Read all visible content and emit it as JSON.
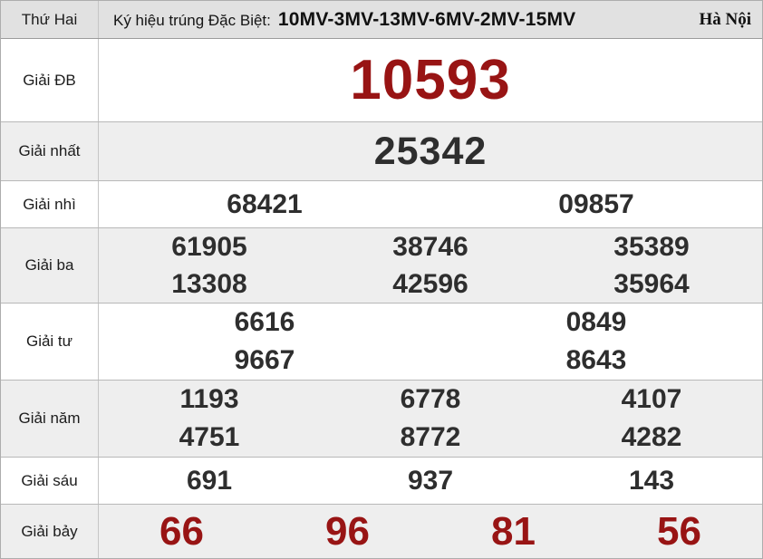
{
  "header": {
    "day": "Thứ Hai",
    "sign_label": "Ký hiệu trúng Đặc Biệt:",
    "sign_codes": "10MV-3MV-13MV-6MV-2MV-15MV",
    "region": "Hà Nội"
  },
  "prizes": [
    {
      "label": "Giải ĐB",
      "numbers": [
        [
          "10593"
        ]
      ]
    },
    {
      "label": "Giải nhất",
      "numbers": [
        [
          "25342"
        ]
      ]
    },
    {
      "label": "Giải nhì",
      "numbers": [
        [
          "68421",
          "09857"
        ]
      ]
    },
    {
      "label": "Giải ba",
      "numbers": [
        [
          "61905",
          "38746",
          "35389"
        ],
        [
          "13308",
          "42596",
          "35964"
        ]
      ]
    },
    {
      "label": "Giải tư",
      "numbers": [
        [
          "6616",
          "0849"
        ],
        [
          "9667",
          "8643"
        ]
      ]
    },
    {
      "label": "Giải năm",
      "numbers": [
        [
          "1193",
          "6778",
          "4107"
        ],
        [
          "4751",
          "8772",
          "4282"
        ]
      ]
    },
    {
      "label": "Giải sáu",
      "numbers": [
        [
          "691",
          "937",
          "143"
        ]
      ]
    },
    {
      "label": "Giải bảy",
      "numbers": [
        [
          "66",
          "96",
          "81",
          "56"
        ]
      ]
    }
  ],
  "colors": {
    "special_red": "#981414",
    "number_black": "#2e2e2e",
    "row_alt_bg": "#eeeeee",
    "header_bg": "#e1e1e1"
  }
}
